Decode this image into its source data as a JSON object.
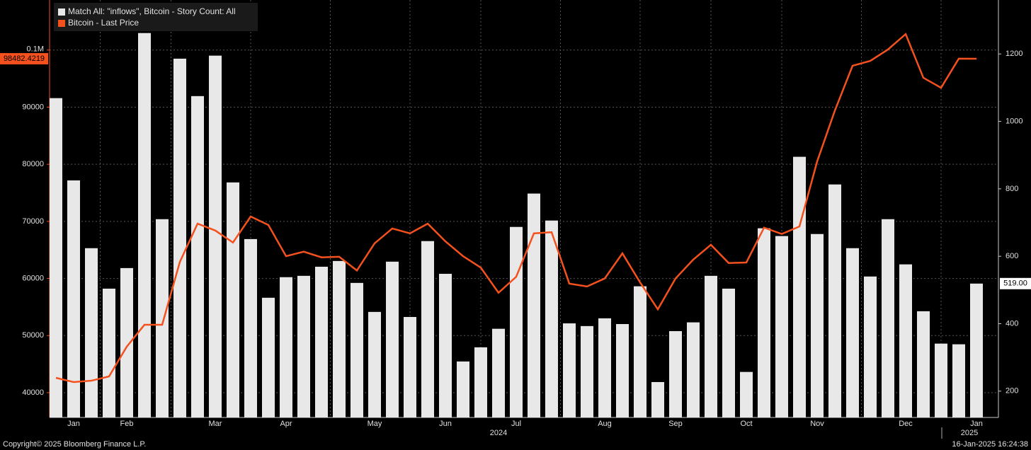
{
  "chart_data": {
    "type": "bar",
    "categories": [
      null,
      "Jan",
      null,
      null,
      "Feb",
      null,
      null,
      null,
      null,
      "Mar",
      null,
      null,
      null,
      "Apr",
      null,
      null,
      null,
      null,
      "May",
      null,
      null,
      null,
      "Jun",
      null,
      null,
      null,
      "Jul",
      null,
      null,
      null,
      null,
      "Aug",
      null,
      null,
      null,
      "Sep",
      null,
      null,
      null,
      "Oct",
      null,
      null,
      null,
      "Nov",
      null,
      null,
      null,
      null,
      "Dec",
      null,
      null,
      null,
      "Jan"
    ],
    "x_group_labels": [
      "2024",
      "2025"
    ],
    "series": [
      {
        "name": "Match All: \"inflows\", Bitcoin - Story Count: All",
        "type": "bar",
        "axis": "y2",
        "color": "#e8e8e8",
        "values": [
          1069,
          825,
          624,
          504,
          565,
          1262,
          710,
          1186,
          1075,
          1195,
          819,
          651,
          477,
          538,
          542,
          569,
          586,
          521,
          435,
          584,
          420,
          645,
          548,
          288,
          330,
          385,
          687,
          786,
          706,
          401,
          393,
          416,
          399,
          511,
          227,
          378,
          404,
          542,
          504,
          257,
          683,
          660,
          895,
          666,
          813,
          624,
          540,
          710,
          576,
          437,
          341,
          339,
          519
        ],
        "value_labels": [
          null,
          null,
          null,
          null,
          null,
          null,
          null,
          null,
          null,
          null,
          null,
          null,
          null,
          null,
          null,
          null,
          null,
          null,
          null,
          null,
          null,
          null,
          null,
          null,
          null,
          null,
          null,
          null,
          null,
          null,
          null,
          null,
          null,
          null,
          null,
          null,
          null,
          null,
          null,
          null,
          null,
          null,
          null,
          null,
          null,
          null,
          null,
          null,
          null,
          null,
          null,
          null,
          "519.00"
        ]
      },
      {
        "name": "Bitcoin - Last Price",
        "type": "line",
        "axis": "y",
        "color": "#f4511e",
        "values": [
          42600,
          41860,
          42100,
          42850,
          48050,
          51900,
          51900,
          62900,
          69600,
          68400,
          66300,
          70850,
          69370,
          63900,
          64700,
          63700,
          63800,
          61400,
          66150,
          68750,
          67900,
          69600,
          66500,
          63900,
          61900,
          57500,
          60300,
          67900,
          68100,
          59100,
          58600,
          60000,
          64400,
          59300,
          54600,
          60000,
          63300,
          65900,
          62700,
          62800,
          68900,
          67800,
          69100,
          80500,
          89400,
          97250,
          98100,
          100100,
          102800,
          95150,
          93400,
          98500,
          98482.4219
        ]
      }
    ],
    "ylim": [
      35660,
      108770
    ],
    "yticks": [
      40000,
      50000,
      60000,
      70000,
      80000,
      90000,
      {
        "value": 100000,
        "label": "0.1M"
      }
    ],
    "y2lim": [
      122,
      1360
    ],
    "y2ticks": [
      200,
      400,
      600,
      800,
      1000,
      1200
    ],
    "grid": true
  },
  "footer": {
    "left": "Copyright© 2025 Bloomberg Finance L.P.",
    "right": "16-Jan-2025 16:24:38"
  }
}
